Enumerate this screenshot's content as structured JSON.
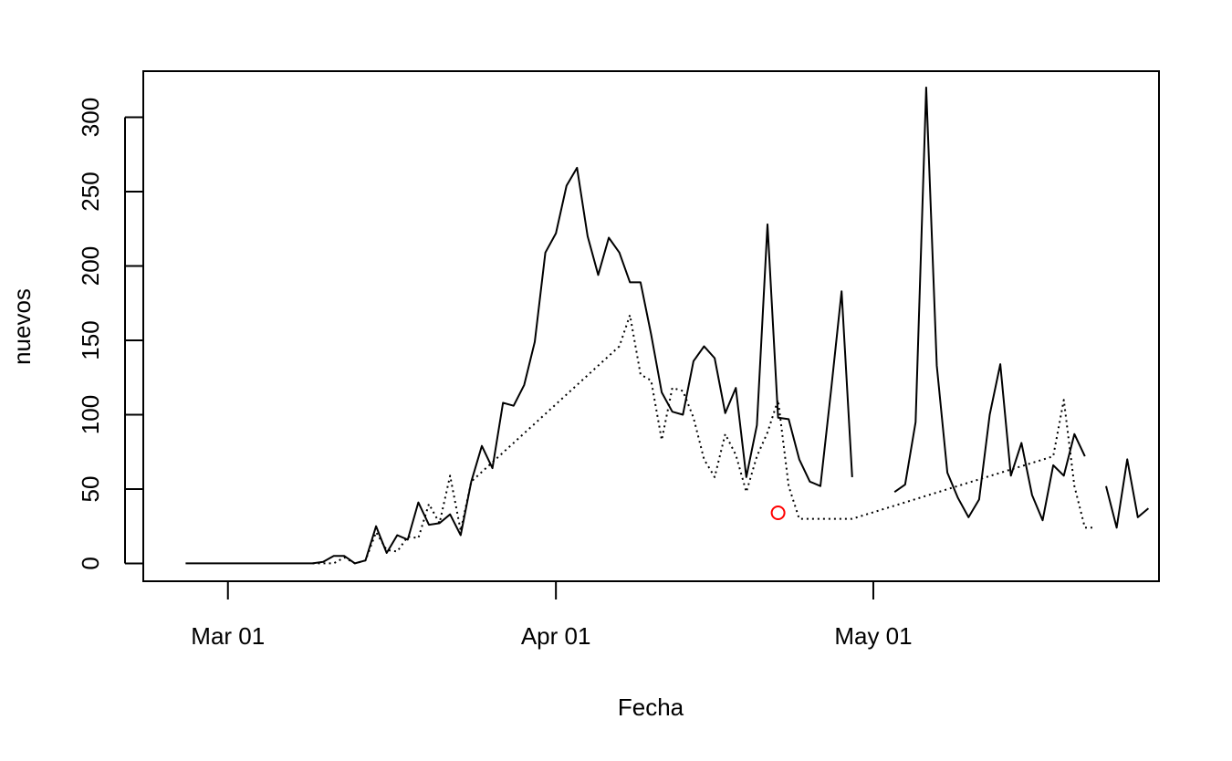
{
  "chart_data": {
    "type": "line",
    "title": "",
    "xlabel": "Fecha",
    "ylabel": "nuevos",
    "x_ticks": [
      {
        "date": "2020-03-01",
        "label": "Mar 01"
      },
      {
        "date": "2020-04-01",
        "label": "Apr 01"
      },
      {
        "date": "2020-05-01",
        "label": "May 01"
      }
    ],
    "y_ticks": [
      0,
      50,
      100,
      150,
      200,
      250,
      300
    ],
    "xlim": [
      "2020-02-22",
      "2020-05-28"
    ],
    "ylim": [
      -12,
      331
    ],
    "grid": false,
    "series": [
      {
        "style": "solid",
        "color": "#000000",
        "x": [
          "2020-02-26",
          "2020-02-27",
          "2020-02-28",
          "2020-02-29",
          "2020-03-01",
          "2020-03-02",
          "2020-03-03",
          "2020-03-04",
          "2020-03-05",
          "2020-03-06",
          "2020-03-07",
          "2020-03-08",
          "2020-03-09",
          "2020-03-10",
          "2020-03-11",
          "2020-03-12",
          "2020-03-13",
          "2020-03-14",
          "2020-03-15",
          "2020-03-16",
          "2020-03-17",
          "2020-03-18",
          "2020-03-19",
          "2020-03-20",
          "2020-03-21",
          "2020-03-22",
          "2020-03-23",
          "2020-03-24",
          "2020-03-25",
          "2020-03-26",
          "2020-03-27",
          "2020-03-28",
          "2020-03-29",
          "2020-03-30",
          "2020-03-31",
          "2020-04-01",
          "2020-04-02",
          "2020-04-03",
          "2020-04-04",
          "2020-04-05",
          "2020-04-06",
          "2020-04-07",
          "2020-04-08",
          "2020-04-09",
          "2020-04-10",
          "2020-04-11",
          "2020-04-12",
          "2020-04-13",
          "2020-04-14",
          "2020-04-15",
          "2020-04-16",
          "2020-04-17",
          "2020-04-18",
          "2020-04-19",
          "2020-04-20",
          "2020-04-21",
          "2020-04-22",
          "2020-04-23",
          "2020-04-24",
          "2020-04-25",
          "2020-04-26",
          "2020-04-27",
          "2020-04-28",
          "2020-04-29",
          "2020-04-30",
          "2020-05-01",
          "2020-05-02",
          "2020-05-03",
          "2020-05-04",
          "2020-05-05",
          "2020-05-06",
          "2020-05-07",
          "2020-05-08",
          "2020-05-09",
          "2020-05-10",
          "2020-05-11",
          "2020-05-12",
          "2020-05-13",
          "2020-05-14",
          "2020-05-15",
          "2020-05-16",
          "2020-05-17",
          "2020-05-18",
          "2020-05-19",
          "2020-05-20",
          "2020-05-21",
          "2020-05-22",
          "2020-05-23",
          "2020-05-24",
          "2020-05-25",
          "2020-05-26",
          "2020-05-27"
        ],
        "values": [
          0,
          0,
          0,
          0,
          0,
          0,
          0,
          0,
          0,
          0,
          0,
          0,
          0,
          1,
          5,
          5,
          0,
          2,
          25,
          7,
          19,
          16,
          41,
          26,
          27,
          33,
          19,
          55,
          79,
          64,
          108,
          106,
          120,
          149,
          209,
          222,
          254,
          266,
          220,
          194,
          219,
          209,
          189,
          189,
          154,
          115,
          102,
          100,
          136,
          146,
          138,
          101,
          118,
          58,
          93,
          228,
          98,
          97,
          70,
          55,
          52,
          116,
          183,
          58,
          null,
          null,
          null,
          48,
          53,
          95,
          320,
          133,
          61,
          44,
          31,
          43,
          100,
          134,
          59,
          81,
          46,
          29,
          66,
          59,
          87,
          72,
          null,
          52,
          24,
          70,
          31,
          37
        ]
      },
      {
        "style": "dotted",
        "color": "#000000",
        "x": [
          "2020-03-09",
          "2020-03-10",
          "2020-03-11",
          "2020-03-12",
          "2020-03-13",
          "2020-03-14",
          "2020-03-15",
          "2020-03-16",
          "2020-03-17",
          "2020-03-18",
          "2020-03-19",
          "2020-03-20",
          "2020-03-21",
          "2020-03-22",
          "2020-03-23",
          "2020-03-24",
          "2020-04-07",
          "2020-04-08",
          "2020-04-09",
          "2020-04-10",
          "2020-04-11",
          "2020-04-12",
          "2020-04-13",
          "2020-04-14",
          "2020-04-15",
          "2020-04-16",
          "2020-04-17",
          "2020-04-18",
          "2020-04-19",
          "2020-04-20",
          "2020-04-21",
          "2020-04-22",
          "2020-04-23",
          "2020-04-24",
          "2020-04-25",
          "2020-04-26",
          "2020-04-27",
          "2020-04-28",
          "2020-04-29",
          "2020-05-18",
          "2020-05-19",
          "2020-05-20",
          "2020-05-21",
          "2020-05-22"
        ],
        "values": [
          0,
          0,
          0,
          4,
          0,
          2,
          21,
          9,
          8,
          18,
          17,
          40,
          27,
          59,
          22,
          55,
          146,
          167,
          127,
          123,
          83,
          118,
          116,
          98,
          70,
          58,
          87,
          73,
          48,
          72,
          88,
          110,
          52,
          30,
          30,
          30,
          30,
          30,
          30,
          72,
          110,
          52,
          24,
          24
        ]
      }
    ],
    "points": [
      {
        "date": "2020-04-22",
        "value": 34,
        "color": "#ff0000",
        "shape": "open-circle"
      }
    ]
  }
}
